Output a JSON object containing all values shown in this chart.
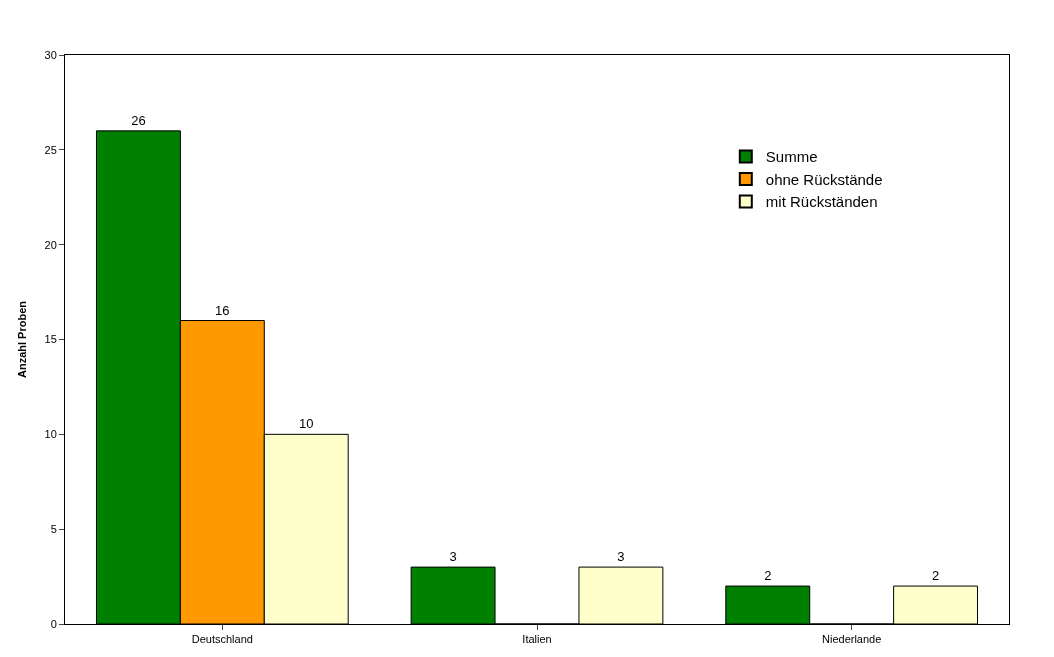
{
  "chart_data": {
    "type": "bar",
    "ylabel": "Anzahl Proben",
    "categories": [
      "Deutschland",
      "Italien",
      "Niederlande"
    ],
    "series": [
      {
        "name": "Summe",
        "color": "#008000",
        "values": [
          26,
          3,
          2
        ],
        "value_labels": [
          "26",
          "3",
          "2"
        ]
      },
      {
        "name": "ohne Rückstände",
        "color": "#ff9900",
        "values": [
          16,
          0,
          0
        ],
        "value_labels": [
          "16",
          null,
          null
        ]
      },
      {
        "name": "mit Rückständen",
        "color": "#ffffcc",
        "values": [
          10,
          3,
          2
        ],
        "value_labels": [
          "10",
          "3",
          "2"
        ]
      }
    ],
    "ylim": [
      0,
      30
    ],
    "yticks": [
      0,
      5,
      10,
      15,
      20,
      25,
      30
    ],
    "legend": "top right"
  }
}
